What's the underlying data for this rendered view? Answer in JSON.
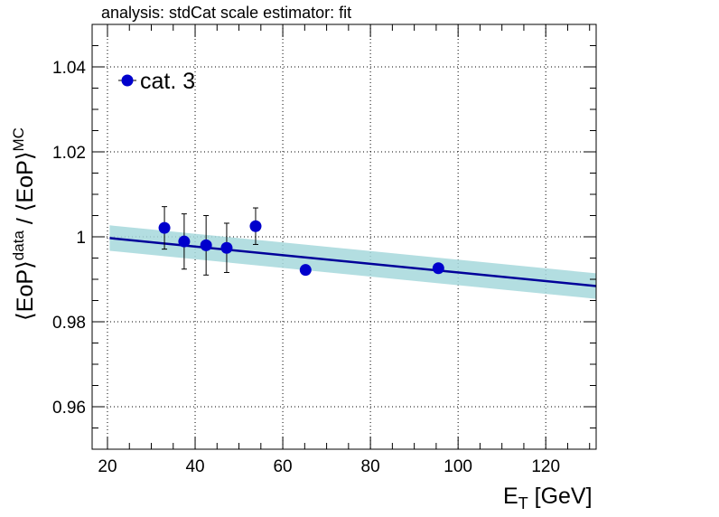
{
  "chart_data": {
    "type": "scatter",
    "title": "analysis: stdCat   scale estimator: fit",
    "xlabel": {
      "main": "E",
      "sub": "T",
      "rest": " [GeV]"
    },
    "ylabel": {
      "p1": "⟨EoP⟩",
      "sup1": "data",
      "p2": " / ⟨EoP⟩",
      "sup2": "MC"
    },
    "xlim": [
      16.5,
      131.5
    ],
    "ylim": [
      0.95,
      1.05
    ],
    "x_ticks": [
      20,
      40,
      60,
      80,
      100,
      120
    ],
    "x_tick_labels": [
      "20",
      "40",
      "60",
      "80",
      "100",
      "120"
    ],
    "y_ticks": [
      0.96,
      0.98,
      1.0,
      1.02,
      1.04
    ],
    "y_tick_labels": [
      "0.96",
      "0.98",
      "1",
      "1.02",
      "1.04"
    ],
    "grid": true,
    "legend_position": "top-left",
    "series": [
      {
        "name": "cat. 3",
        "color": "#0000cc",
        "points": [
          {
            "x": 33.0,
            "y": 1.0021,
            "err": 0.005
          },
          {
            "x": 37.5,
            "y": 0.9989,
            "err": 0.0065
          },
          {
            "x": 42.5,
            "y": 0.998,
            "err": 0.007
          },
          {
            "x": 47.2,
            "y": 0.9974,
            "err": 0.0058
          },
          {
            "x": 53.8,
            "y": 1.0025,
            "err": 0.0043
          },
          {
            "x": 65.2,
            "y": 0.9922,
            "err": 0.001
          },
          {
            "x": 95.5,
            "y": 0.9926,
            "err": 0.0007
          }
        ]
      }
    ],
    "fit": {
      "color": "#000099",
      "band_color": "#a6d8dc",
      "x": [
        20.5,
        131.5
      ],
      "y": [
        0.9997,
        0.9884
      ],
      "band": [
        0.003,
        0.003
      ]
    }
  }
}
